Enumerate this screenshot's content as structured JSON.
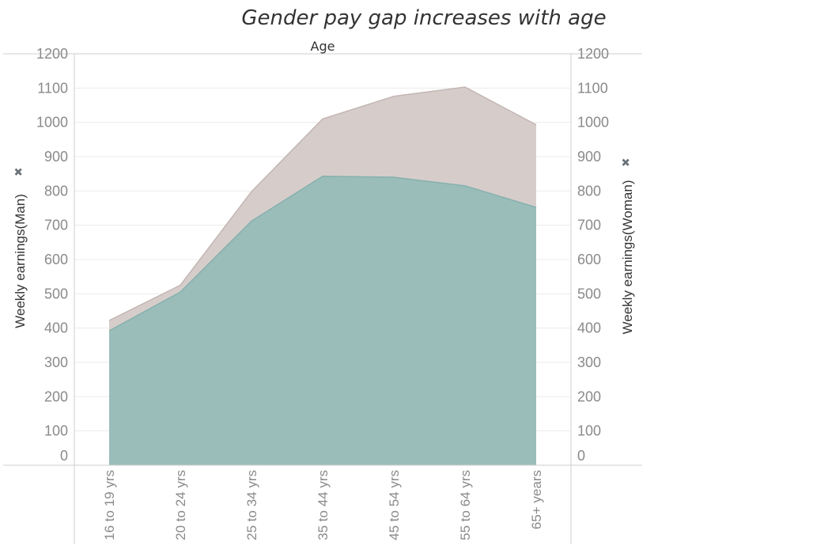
{
  "colors": {
    "man_fill": "#d6cdcb",
    "man_stroke": "#c3b6b3",
    "woman_fill": "#93bbb8",
    "woman_stroke": "#86b0ad",
    "pin": "#6a7278"
  },
  "chart_data": {
    "type": "area",
    "title": "Gender pay gap increases with age",
    "xlabel": "Age",
    "ylabel_left": "Weekly earnings(Man)",
    "ylabel_right": "Weekly earnings(Woman)",
    "categories": [
      "16 to 19 yrs",
      "20 to 24 yrs",
      "25 to 34 yrs",
      "35 to 44 yrs",
      "45 to 54 yrs",
      "55 to 64 yrs",
      "65+ years"
    ],
    "yticks": [
      0,
      100,
      200,
      300,
      400,
      500,
      600,
      700,
      800,
      900,
      1000,
      1100,
      1200
    ],
    "ylim": [
      0,
      1200
    ],
    "grid": true,
    "series": [
      {
        "name": "Weekly earnings(Man)",
        "values": [
          422,
          525,
          798,
          1010,
          1076,
          1103,
          993
        ]
      },
      {
        "name": "Weekly earnings(Woman)",
        "values": [
          392,
          505,
          712,
          843,
          840,
          815,
          752
        ]
      }
    ]
  }
}
